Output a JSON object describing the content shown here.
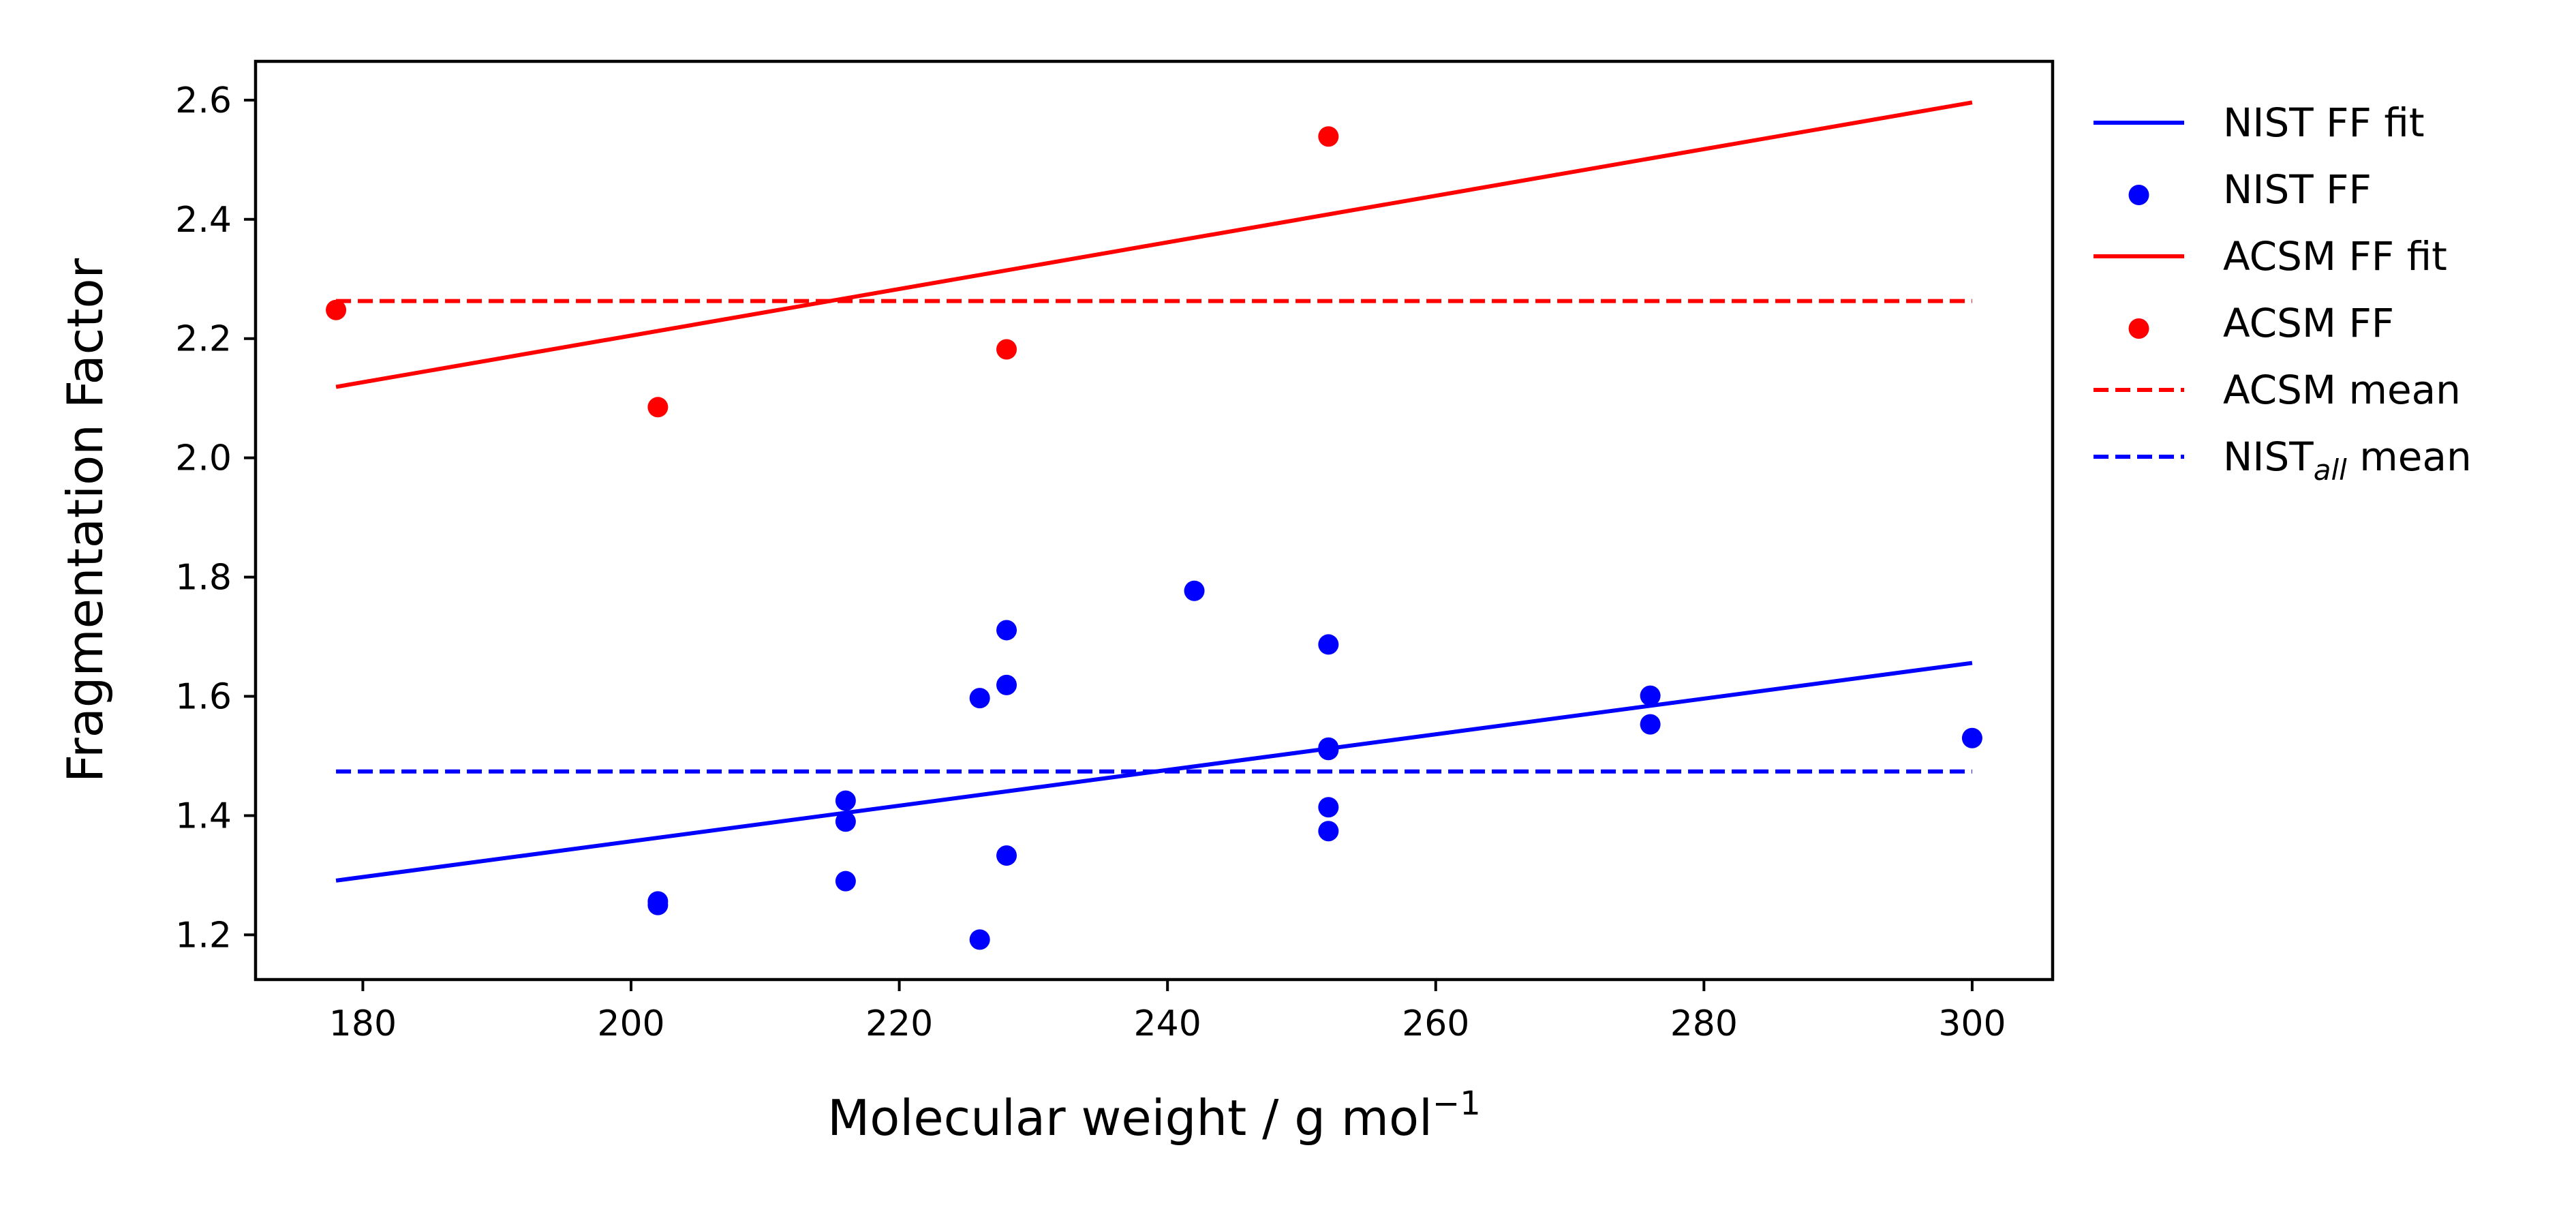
{
  "chart_data": {
    "type": "scatter",
    "xlabel": "Molecular weight / g mol",
    "xlabel_superscript": "−1",
    "ylabel": "Fragmentation Factor",
    "xlim": [
      172,
      306
    ],
    "ylim": [
      1.125,
      2.665
    ],
    "x_ticks": [
      180,
      200,
      220,
      240,
      260,
      280,
      300
    ],
    "y_ticks": [
      1.2,
      1.4,
      1.6,
      1.8,
      2.0,
      2.2,
      2.4,
      2.6
    ],
    "grid": false,
    "legend_position": "outside-right",
    "series": [
      {
        "name": "NIST FF fit",
        "kind": "line",
        "style": "solid",
        "color": "#0000ff",
        "x": [
          178,
          300
        ],
        "y": [
          1.291,
          1.656
        ]
      },
      {
        "name": "NIST FF",
        "kind": "scatter",
        "color": "#0000ff",
        "points": [
          {
            "x": 202,
            "y": 1.256
          },
          {
            "x": 202,
            "y": 1.25
          },
          {
            "x": 216,
            "y": 1.425
          },
          {
            "x": 216,
            "y": 1.39
          },
          {
            "x": 216,
            "y": 1.29
          },
          {
            "x": 226,
            "y": 1.597
          },
          {
            "x": 226,
            "y": 1.192
          },
          {
            "x": 228,
            "y": 1.711
          },
          {
            "x": 228,
            "y": 1.619
          },
          {
            "x": 228,
            "y": 1.333
          },
          {
            "x": 242,
            "y": 1.777
          },
          {
            "x": 252,
            "y": 1.687
          },
          {
            "x": 252,
            "y": 1.514
          },
          {
            "x": 252,
            "y": 1.51
          },
          {
            "x": 252,
            "y": 1.414
          },
          {
            "x": 252,
            "y": 1.374
          },
          {
            "x": 276,
            "y": 1.601
          },
          {
            "x": 276,
            "y": 1.553
          },
          {
            "x": 300,
            "y": 1.53
          }
        ]
      },
      {
        "name": "ACSM FF fit",
        "kind": "line",
        "style": "solid",
        "color": "#ff0000",
        "x": [
          178,
          300
        ],
        "y": [
          2.119,
          2.596
        ]
      },
      {
        "name": "ACSM FF",
        "kind": "scatter",
        "color": "#ff0000",
        "points": [
          {
            "x": 178,
            "y": 2.248
          },
          {
            "x": 202,
            "y": 2.085
          },
          {
            "x": 228,
            "y": 2.182
          },
          {
            "x": 252,
            "y": 2.539
          }
        ]
      },
      {
        "name": "ACSM mean",
        "kind": "line",
        "style": "dashed",
        "color": "#ff0000",
        "x": [
          178,
          300
        ],
        "y": [
          2.263,
          2.263
        ]
      },
      {
        "name": "NIST",
        "name_subscript": "all",
        "name_suffix": " mean",
        "kind": "line",
        "style": "dashed",
        "color": "#0000ff",
        "x": [
          178,
          300
        ],
        "y": [
          1.474,
          1.474
        ]
      }
    ]
  }
}
